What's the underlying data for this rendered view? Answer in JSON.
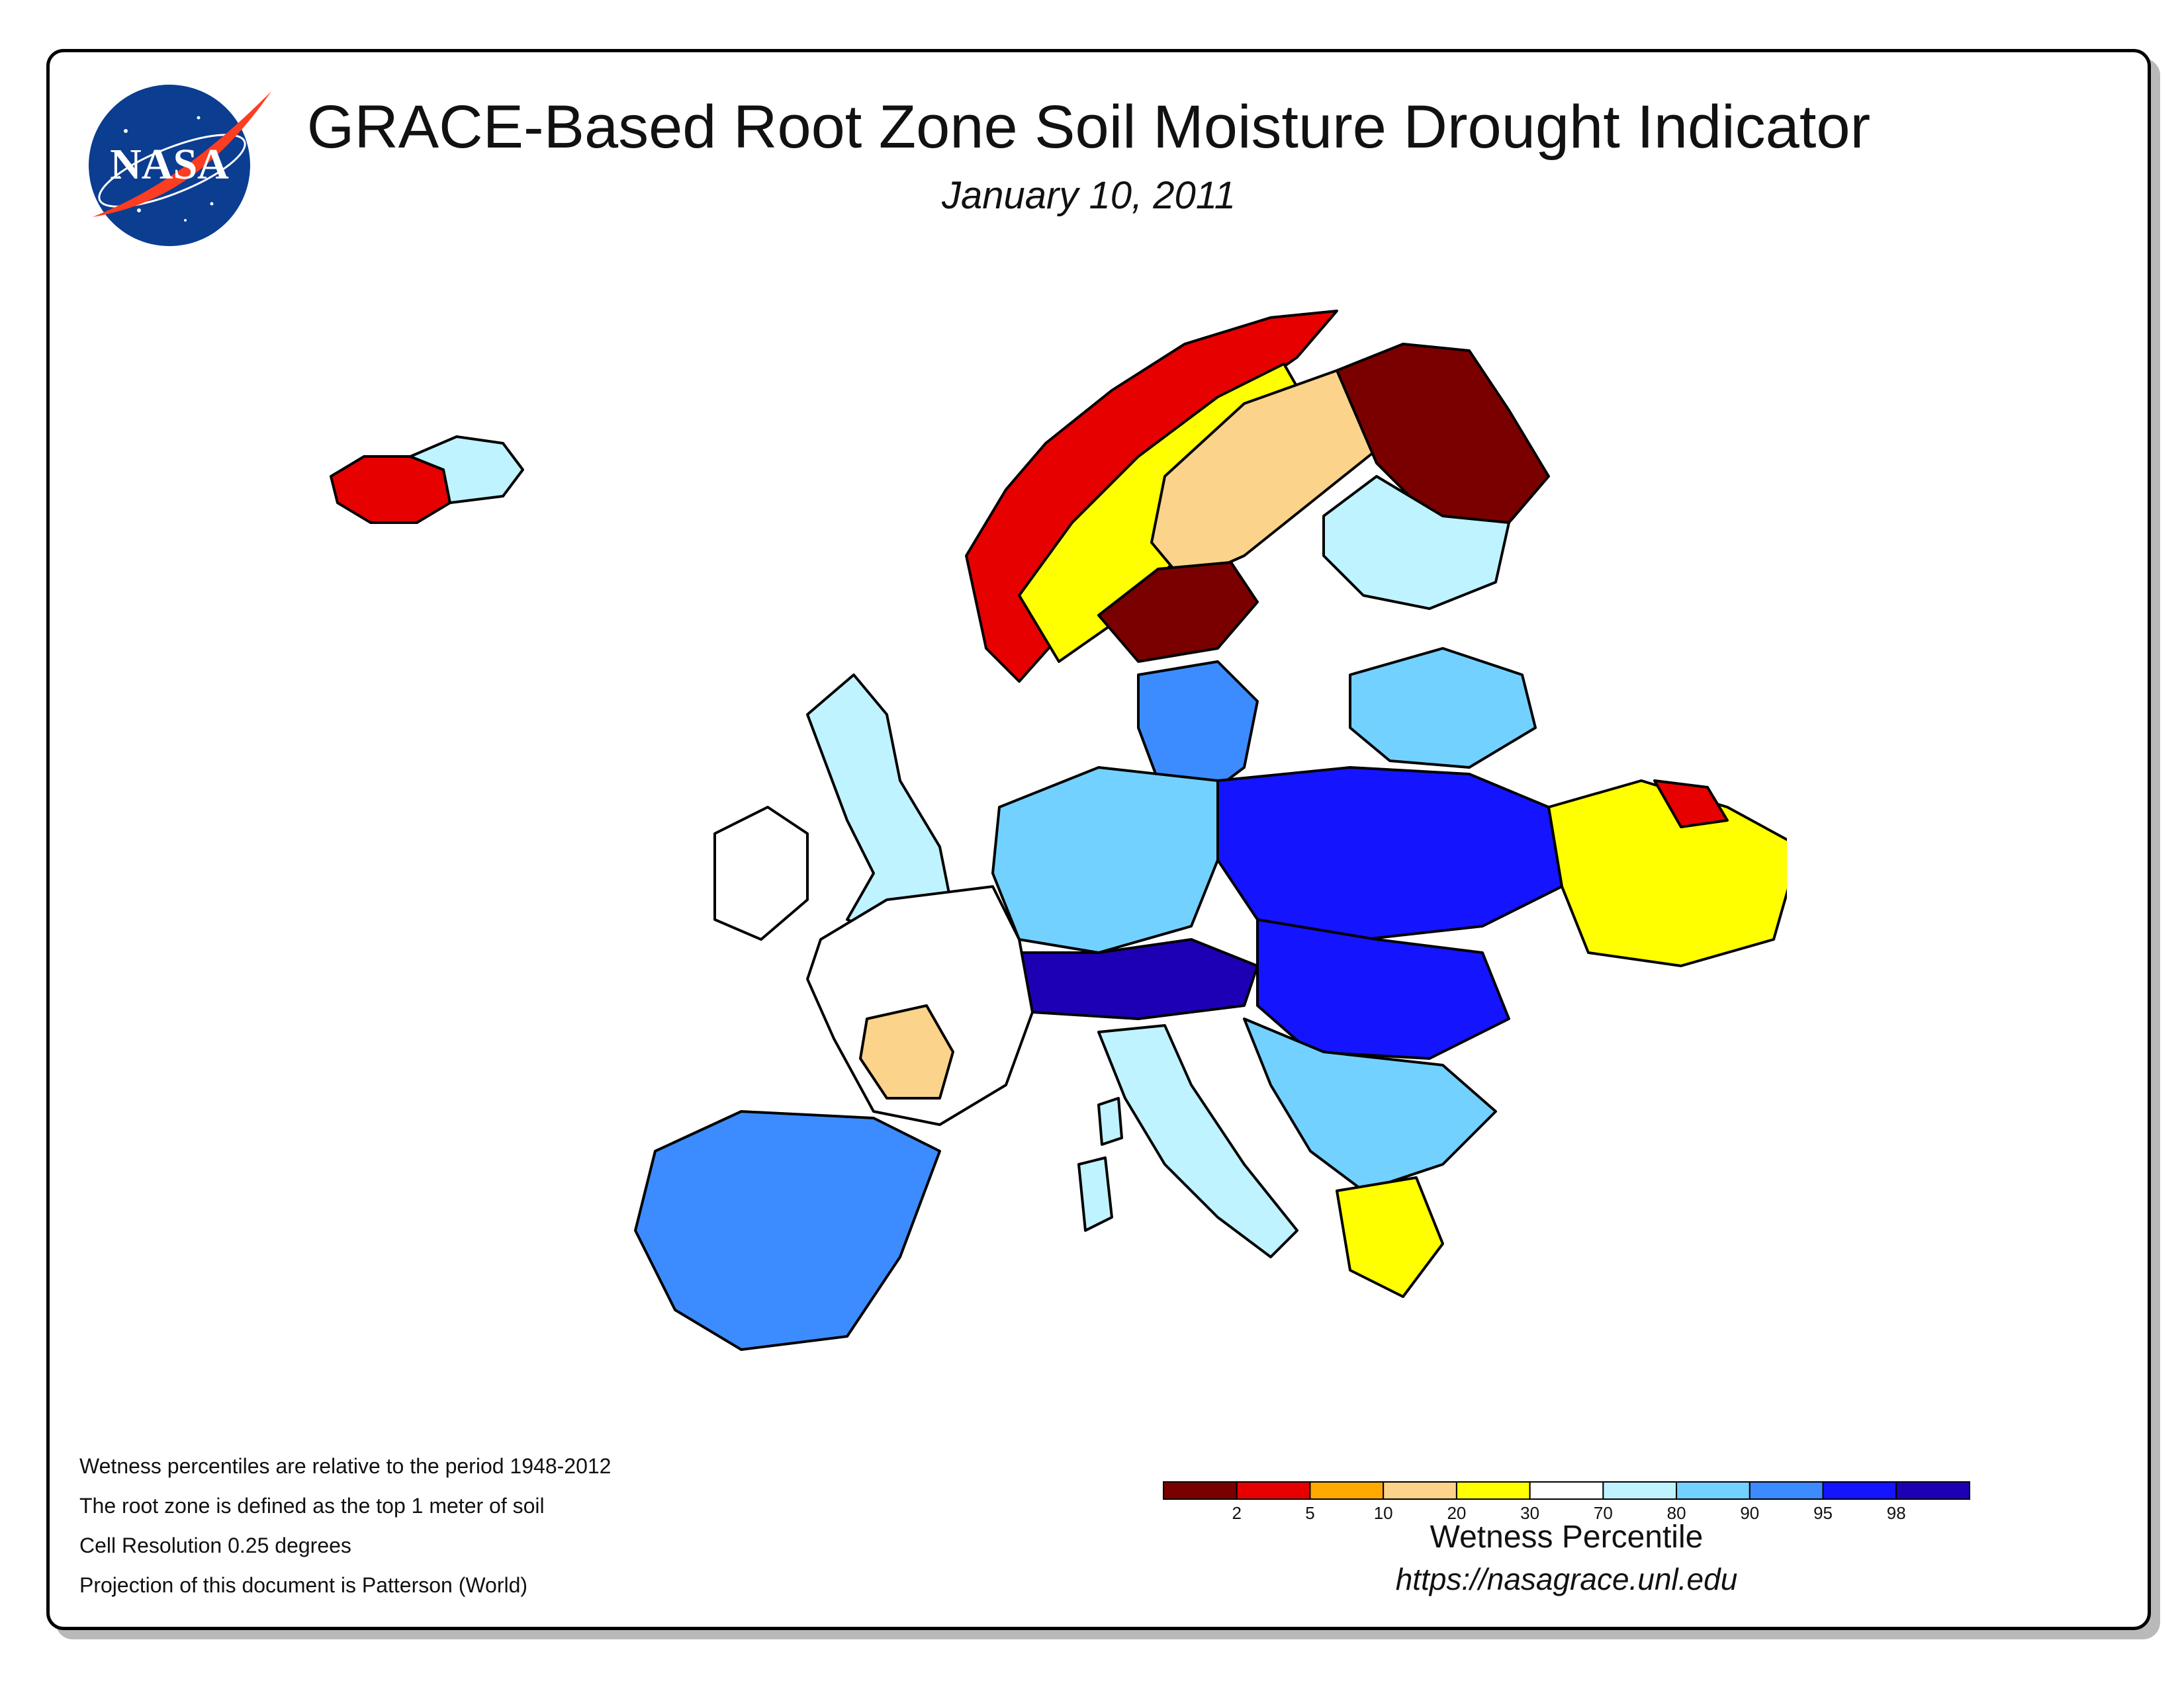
{
  "header": {
    "title": "GRACE-Based Root Zone Soil Moisture Drought Indicator",
    "date": "January 10, 2011",
    "logo_text": "NASA"
  },
  "notes": [
    "Wetness percentiles are relative to the period 1948-2012",
    "The root zone is defined as the top 1 meter of soil",
    "Cell Resolution 0.25 degrees",
    "Projection of this document is Patterson (World)"
  ],
  "legend": {
    "title": "Wetness Percentile",
    "ticks": [
      "2",
      "5",
      "10",
      "20",
      "30",
      "70",
      "80",
      "90",
      "95",
      "98"
    ],
    "colors": [
      "#7a0000",
      "#e60000",
      "#ffaa00",
      "#fcd38a",
      "#ffff00",
      "#ffffff",
      "#bff3ff",
      "#73d1ff",
      "#3c8cff",
      "#1414ff",
      "#1e00b4"
    ]
  },
  "source_url": "https://nasagrace.unl.edu",
  "map": {
    "region": "Europe",
    "regions": [
      {
        "name": "iceland-west",
        "color": "#e60000"
      },
      {
        "name": "iceland-north",
        "color": "#bff3ff"
      },
      {
        "name": "norway-coast",
        "color": "#e60000"
      },
      {
        "name": "norway-inland",
        "color": "#ffff00"
      },
      {
        "name": "sweden-north",
        "color": "#fcd38a"
      },
      {
        "name": "sweden-central",
        "color": "#7a0000"
      },
      {
        "name": "sweden-south",
        "color": "#3c8cff"
      },
      {
        "name": "finland-north",
        "color": "#7a0000"
      },
      {
        "name": "finland-south",
        "color": "#bff3ff"
      },
      {
        "name": "baltics",
        "color": "#73d1ff"
      },
      {
        "name": "poland-belarus",
        "color": "#1414ff"
      },
      {
        "name": "germany",
        "color": "#73d1ff"
      },
      {
        "name": "alps",
        "color": "#1e00b4"
      },
      {
        "name": "hungary-romania",
        "color": "#1414ff"
      },
      {
        "name": "balkans",
        "color": "#73d1ff"
      },
      {
        "name": "ukraine-east",
        "color": "#ffff00"
      },
      {
        "name": "russia-border",
        "color": "#e60000"
      },
      {
        "name": "france",
        "color": "#ffffff"
      },
      {
        "name": "france-southwest",
        "color": "#fcd38a"
      },
      {
        "name": "iberia",
        "color": "#3c8cff"
      },
      {
        "name": "italy",
        "color": "#bff3ff"
      },
      {
        "name": "greece",
        "color": "#ffff00"
      },
      {
        "name": "british-isles",
        "color": "#bff3ff"
      }
    ]
  }
}
